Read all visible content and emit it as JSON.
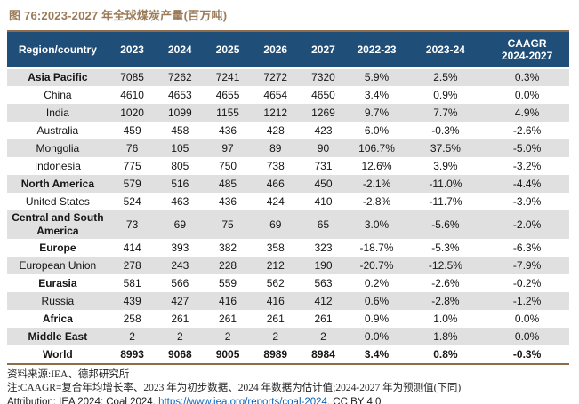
{
  "title": "图 76:2023-2027 年全球煤炭产量(百万吨)",
  "colors": {
    "header_bg": "#1F4E79",
    "row_stripe": "#E0E0E0",
    "title_brown": "#9C7B59",
    "rule_brown": "#8F6B4A",
    "link_blue": "#0563C1"
  },
  "chart_data": {
    "type": "table",
    "title": "图 76:2023-2027 年全球煤炭产量(百万吨)",
    "columns": [
      "Region/country",
      "2023",
      "2024",
      "2025",
      "2026",
      "2027",
      "2022-23",
      "2023-24",
      "CAAGR 2024-2027"
    ],
    "header_cells": [
      [
        "Region/country"
      ],
      [
        "2023"
      ],
      [
        "2024"
      ],
      [
        "2025"
      ],
      [
        "2026"
      ],
      [
        "2027"
      ],
      [
        "2022-23"
      ],
      [
        "2023-24"
      ],
      [
        "CAAGR",
        "2024-2027"
      ]
    ],
    "rows": [
      {
        "region": "Asia Pacific",
        "bold": true,
        "values": [
          "7085",
          "7262",
          "7241",
          "7272",
          "7320",
          "5.9%",
          "2.5%",
          "0.3%"
        ]
      },
      {
        "region": "China",
        "bold": false,
        "values": [
          "4610",
          "4653",
          "4655",
          "4654",
          "4650",
          "3.4%",
          "0.9%",
          "0.0%"
        ]
      },
      {
        "region": "India",
        "bold": false,
        "values": [
          "1020",
          "1099",
          "1155",
          "1212",
          "1269",
          "9.7%",
          "7.7%",
          "4.9%"
        ]
      },
      {
        "region": "Australia",
        "bold": false,
        "values": [
          "459",
          "458",
          "436",
          "428",
          "423",
          "6.0%",
          "-0.3%",
          "-2.6%"
        ]
      },
      {
        "region": "Mongolia",
        "bold": false,
        "values": [
          "76",
          "105",
          "97",
          "89",
          "90",
          "106.7%",
          "37.5%",
          "-5.0%"
        ]
      },
      {
        "region": "Indonesia",
        "bold": false,
        "values": [
          "775",
          "805",
          "750",
          "738",
          "731",
          "12.6%",
          "3.9%",
          "-3.2%"
        ]
      },
      {
        "region": "North America",
        "bold": true,
        "values": [
          "579",
          "516",
          "485",
          "466",
          "450",
          "-2.1%",
          "-11.0%",
          "-4.4%"
        ]
      },
      {
        "region": "United States",
        "bold": false,
        "values": [
          "524",
          "463",
          "436",
          "424",
          "410",
          "-2.8%",
          "-11.7%",
          "-3.9%"
        ]
      },
      {
        "region": "Central and South America",
        "bold": true,
        "values": [
          "73",
          "69",
          "75",
          "69",
          "65",
          "3.0%",
          "-5.6%",
          "-2.0%"
        ]
      },
      {
        "region": "Europe",
        "bold": true,
        "values": [
          "414",
          "393",
          "382",
          "358",
          "323",
          "-18.7%",
          "-5.3%",
          "-6.3%"
        ]
      },
      {
        "region": "European Union",
        "bold": false,
        "values": [
          "278",
          "243",
          "228",
          "212",
          "190",
          "-20.7%",
          "-12.5%",
          "-7.9%"
        ]
      },
      {
        "region": "Eurasia",
        "bold": true,
        "values": [
          "581",
          "566",
          "559",
          "562",
          "563",
          "0.2%",
          "-2.6%",
          "-0.2%"
        ]
      },
      {
        "region": "Russia",
        "bold": false,
        "values": [
          "439",
          "427",
          "416",
          "416",
          "412",
          "0.6%",
          "-2.8%",
          "-1.2%"
        ]
      },
      {
        "region": "Africa",
        "bold": true,
        "values": [
          "258",
          "261",
          "261",
          "261",
          "261",
          "0.9%",
          "1.0%",
          "0.0%"
        ]
      },
      {
        "region": "Middle East",
        "bold": true,
        "values": [
          "2",
          "2",
          "2",
          "2",
          "2",
          "0.0%",
          "1.8%",
          "0.0%"
        ]
      },
      {
        "region": "World",
        "bold": true,
        "values_bold": true,
        "values": [
          "8993",
          "9068",
          "9005",
          "8989",
          "8984",
          "3.4%",
          "0.8%",
          "-0.3%"
        ]
      }
    ]
  },
  "footer": {
    "source": "资料来源:IEA、德邦研究所",
    "note": "注:CAAGR=复合年均增长率、2023 年为初步数据、2024 年数据为估计值;2024-2027 年为预测值(下同)",
    "attribution_prefix": "Attribution: IEA 2024; Coal 2024, ",
    "attribution_link": "https://www.iea.org/reports/coal-2024,",
    "attribution_suffix": " CC BY 4.0"
  }
}
